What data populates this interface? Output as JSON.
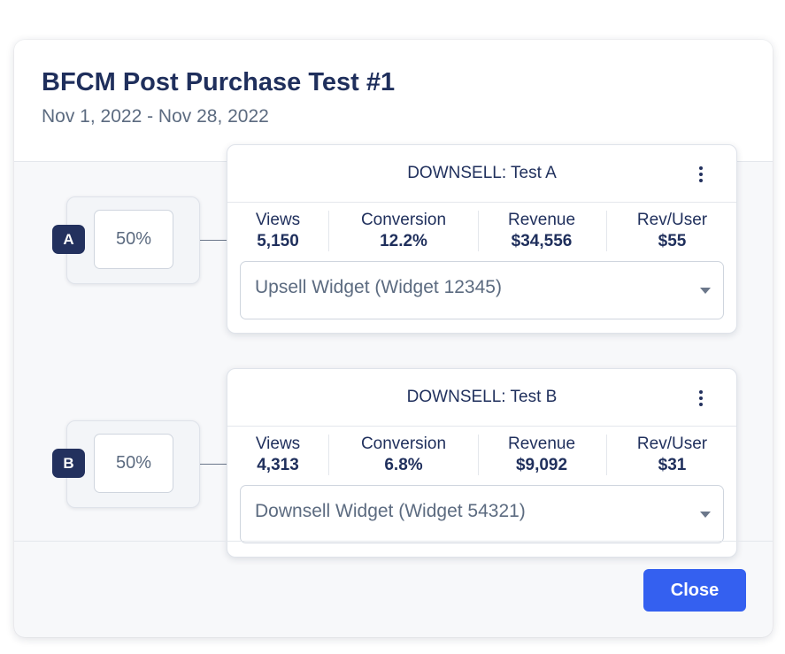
{
  "modal": {
    "title": "BFCM Post Purchase Test #1",
    "date_range": "Nov 1, 2022 - Nov 28, 2022",
    "close_label": "Close"
  },
  "variants": [
    {
      "badge": "A",
      "split": "50%",
      "card_title": "DOWNSELL: Test A",
      "metrics": {
        "views_label": "Views",
        "views": "5,150",
        "conversion_label": "Conversion",
        "conversion": "12.2%",
        "revenue_label": "Revenue",
        "revenue": "$34,556",
        "rev_user_label": "Rev/User",
        "rev_user": "$55"
      },
      "widget": "Upsell Widget (Widget 12345)"
    },
    {
      "badge": "B",
      "split": "50%",
      "card_title": "DOWNSELL: Test B",
      "metrics": {
        "views_label": "Views",
        "views": "4,313",
        "conversion_label": "Conversion",
        "conversion": "6.8%",
        "revenue_label": "Revenue",
        "revenue": "$9,092",
        "rev_user_label": "Rev/User",
        "rev_user": "$31"
      },
      "widget": "Downsell Widget (Widget 54321)"
    }
  ],
  "colors": {
    "primary_button": "#3460f0",
    "badge": "#23315e",
    "heading_text": "#1f2f5c",
    "muted_text": "#5c6b80"
  },
  "icons": {
    "card_menu": "kebab-menu-icon",
    "select_caret": "caret-down-icon"
  }
}
